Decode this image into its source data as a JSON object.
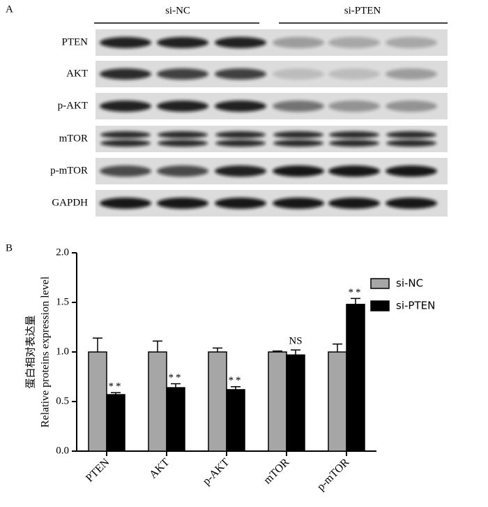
{
  "panel_labels": [
    "A",
    "B"
  ],
  "blot": {
    "groups": [
      "si-NC",
      "si-PTEN"
    ],
    "rows": [
      "PTEN",
      "AKT",
      "p-AKT",
      "mTOR",
      "p-mTOR",
      "GAPDH"
    ]
  },
  "chart_data": {
    "type": "bar",
    "ylabel": [
      "蛋白相对表达量",
      "Relative proteins expression level"
    ],
    "categories": [
      "PTEN",
      "AKT",
      "p-AKT",
      "mTOR",
      "p-mTOR"
    ],
    "series": [
      {
        "name": "si-NC",
        "color": "#a6a6a6",
        "values": [
          1.0,
          1.0,
          1.0,
          1.0,
          1.0
        ],
        "errors": [
          0.14,
          0.11,
          0.04,
          0.01,
          0.08
        ]
      },
      {
        "name": "si-PTEN",
        "color": "#000000",
        "values": [
          0.57,
          0.64,
          0.62,
          0.97,
          1.48
        ],
        "errors": [
          0.02,
          0.04,
          0.03,
          0.05,
          0.06
        ]
      }
    ],
    "annotations": [
      "**",
      "**",
      "**",
      "NS",
      "**"
    ],
    "ylim": [
      0,
      2
    ],
    "yticks": [
      {
        "value": 0,
        "label": "0.0"
      },
      0.5,
      {
        "value": 1,
        "label": "1.0"
      },
      1.5,
      {
        "value": 2,
        "label": "2.0"
      }
    ],
    "legend": "right"
  }
}
